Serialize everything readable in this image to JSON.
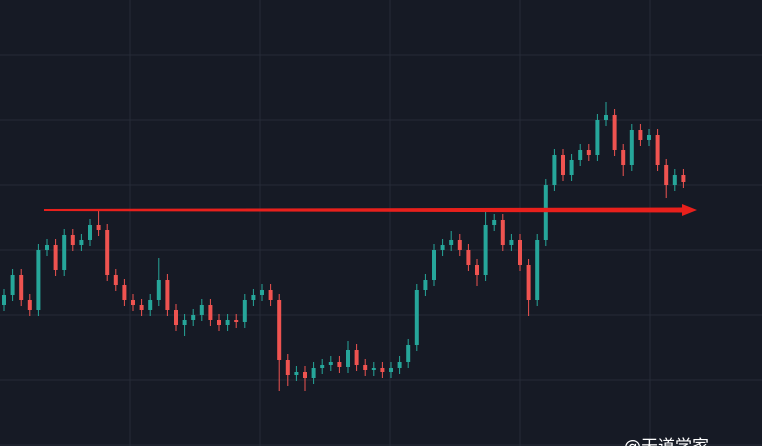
{
  "chart_data": {
    "type": "candlestick",
    "open": [
      141,
      151,
      171,
      146,
      136,
      196,
      201,
      176,
      211,
      201,
      206,
      221,
      216,
      171,
      161,
      146,
      141,
      136,
      146,
      166,
      136,
      121,
      126,
      131,
      141,
      126,
      121,
      126,
      124,
      146,
      151,
      156,
      146,
      86,
      71,
      74,
      68,
      78,
      81,
      84,
      79,
      96,
      81,
      76,
      78,
      74,
      78,
      84,
      101,
      156,
      166,
      196,
      201,
      206,
      196,
      181,
      171,
      221,
      226,
      201,
      206,
      181,
      146,
      206,
      261,
      291,
      271,
      286,
      296,
      291,
      326,
      331,
      296,
      281,
      316,
      306,
      311,
      281,
      261,
      271
    ],
    "high": [
      157,
      177,
      177,
      152,
      202,
      207,
      207,
      217,
      217,
      212,
      227,
      236,
      222,
      177,
      167,
      152,
      147,
      152,
      188,
      172,
      142,
      132,
      137,
      147,
      147,
      132,
      132,
      132,
      152,
      157,
      162,
      162,
      152,
      92,
      80,
      80,
      84,
      87,
      90,
      90,
      105,
      102,
      87,
      84,
      84,
      84,
      90,
      107,
      162,
      172,
      202,
      207,
      215,
      212,
      202,
      187,
      237,
      232,
      232,
      212,
      212,
      187,
      212,
      267,
      297,
      297,
      292,
      302,
      302,
      332,
      344,
      337,
      302,
      322,
      322,
      317,
      317,
      287,
      277,
      277
    ],
    "low": [
      135,
      145,
      140,
      130,
      130,
      190,
      170,
      170,
      195,
      195,
      200,
      210,
      165,
      155,
      140,
      135,
      130,
      130,
      140,
      130,
      115,
      110,
      120,
      125,
      120,
      115,
      115,
      118,
      118,
      140,
      145,
      140,
      55,
      60,
      65,
      55,
      62,
      72,
      75,
      73,
      73,
      75,
      70,
      70,
      68,
      68,
      72,
      78,
      95,
      150,
      160,
      190,
      195,
      190,
      175,
      160,
      165,
      215,
      195,
      195,
      175,
      130,
      140,
      200,
      255,
      265,
      265,
      280,
      285,
      285,
      320,
      290,
      270,
      275,
      300,
      300,
      275,
      248,
      255,
      258
    ],
    "close": [
      151,
      171,
      146,
      136,
      196,
      201,
      176,
      211,
      201,
      206,
      221,
      216,
      171,
      161,
      146,
      141,
      136,
      146,
      166,
      136,
      121,
      126,
      131,
      141,
      126,
      121,
      126,
      124,
      146,
      151,
      156,
      146,
      86,
      71,
      74,
      68,
      78,
      81,
      84,
      79,
      96,
      81,
      76,
      78,
      74,
      78,
      84,
      101,
      156,
      166,
      196,
      201,
      206,
      196,
      181,
      171,
      221,
      226,
      201,
      206,
      181,
      146,
      206,
      261,
      291,
      271,
      286,
      296,
      291,
      326,
      331,
      296,
      281,
      316,
      306,
      311,
      281,
      261,
      271,
      264
    ],
    "up_color": "#26a69a",
    "down_color": "#ef5350",
    "ylim": [
      0,
      446
    ],
    "grid": true,
    "level_line": {
      "value": 236,
      "color": "#e8201c"
    },
    "watermark": "@天道学家"
  }
}
